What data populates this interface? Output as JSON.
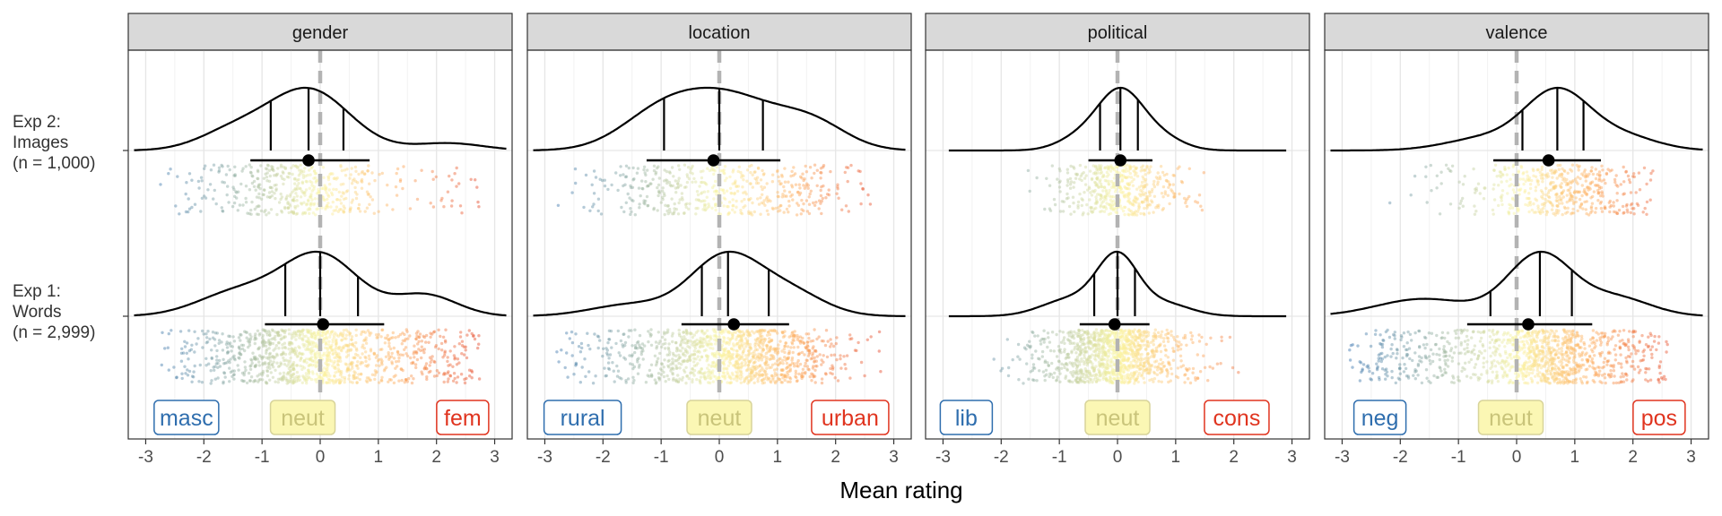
{
  "chart_data": {
    "type": "ridgeline",
    "xlabel": "Mean rating",
    "xlim": [
      -3.3,
      3.3
    ],
    "x_ticks": [
      -3,
      -2,
      -1,
      0,
      1,
      2,
      3
    ],
    "x_tick_labels": [
      "-3",
      "-2",
      "-1",
      "0",
      "1",
      "2",
      "3"
    ],
    "grid": true,
    "rows": [
      {
        "key": "exp2",
        "label_lines": [
          "Exp 2:",
          "Images",
          "(n = 1,000)"
        ]
      },
      {
        "key": "exp1",
        "label_lines": [
          "Exp 1:",
          "Words",
          "(n = 2,999)"
        ]
      }
    ],
    "panels": [
      {
        "name": "gender",
        "labels": [
          {
            "text": "masc",
            "x": -2.3,
            "color": "#2f6eae"
          },
          {
            "text": "neut",
            "x": -0.3,
            "color": "#c9c47a"
          },
          {
            "text": "fem",
            "x": 2.45,
            "color": "#e0341f"
          }
        ],
        "series": {
          "exp2": {
            "range": [
              -3.2,
              3.2
            ],
            "mean": -0.2,
            "ci": [
              -1.2,
              0.85
            ],
            "quantiles": [
              -0.85,
              -0.2,
              0.4
            ],
            "peaks": [
              [
                -0.2,
                1.0,
                0.7
              ],
              [
                -1.5,
                0.3,
                0.6
              ],
              [
                2.2,
                0.12,
                0.6
              ]
            ],
            "spread": [
              -2.8,
              2.8
            ]
          },
          "exp1": {
            "range": [
              -3.2,
              3.2
            ],
            "mean": 0.05,
            "ci": [
              -0.95,
              1.1
            ],
            "quantiles": [
              -0.6,
              0.0,
              0.65
            ],
            "peaks": [
              [
                0.0,
                1.0,
                0.65
              ],
              [
                -1.4,
                0.4,
                0.7
              ],
              [
                1.8,
                0.35,
                0.55
              ]
            ],
            "spread": [
              -2.8,
              2.8
            ]
          }
        }
      },
      {
        "name": "location",
        "labels": [
          {
            "text": "rural",
            "x": -2.35,
            "color": "#2f6eae"
          },
          {
            "text": "neut",
            "x": 0.0,
            "color": "#c9c47a"
          },
          {
            "text": "urban",
            "x": 2.25,
            "color": "#e0341f"
          }
        ],
        "series": {
          "exp2": {
            "range": [
              -3.2,
              3.2
            ],
            "mean": -0.1,
            "ci": [
              -1.25,
              1.05
            ],
            "quantiles": [
              -0.95,
              0.0,
              0.75
            ],
            "peaks": [
              [
                0.2,
                0.8,
                0.8
              ],
              [
                -1.0,
                0.55,
                0.7
              ],
              [
                1.6,
                0.4,
                0.6
              ]
            ],
            "spread": [
              -2.8,
              2.8
            ]
          },
          "exp1": {
            "range": [
              -3.2,
              3.2
            ],
            "mean": 0.25,
            "ci": [
              -0.65,
              1.2
            ],
            "quantiles": [
              -0.3,
              0.15,
              0.85
            ],
            "peaks": [
              [
                0.1,
                1.0,
                0.6
              ],
              [
                1.2,
                0.4,
                0.6
              ],
              [
                -1.5,
                0.2,
                0.7
              ]
            ],
            "spread": [
              -2.8,
              2.9
            ]
          }
        }
      },
      {
        "name": "political",
        "labels": [
          {
            "text": "lib",
            "x": -2.6,
            "color": "#2f6eae"
          },
          {
            "text": "neut",
            "x": 0.0,
            "color": "#c9c47a"
          },
          {
            "text": "cons",
            "x": 2.05,
            "color": "#e0341f"
          }
        ],
        "series": {
          "exp2": {
            "range": [
              -2.9,
              2.9
            ],
            "mean": 0.05,
            "ci": [
              -0.5,
              0.6
            ],
            "quantiles": [
              -0.3,
              0.05,
              0.35
            ],
            "peaks": [
              [
                0.05,
                1.0,
                0.38
              ],
              [
                -0.6,
                0.25,
                0.4
              ],
              [
                0.7,
                0.25,
                0.4
              ]
            ],
            "spread": [
              -1.8,
              1.5
            ]
          },
          "exp1": {
            "range": [
              -2.9,
              2.9
            ],
            "mean": -0.05,
            "ci": [
              -0.65,
              0.55
            ],
            "quantiles": [
              -0.4,
              0.0,
              0.3
            ],
            "peaks": [
              [
                0.0,
                1.0,
                0.35
              ],
              [
                -0.8,
                0.3,
                0.5
              ],
              [
                0.8,
                0.22,
                0.45
              ]
            ],
            "spread": [
              -2.2,
              2.6
            ]
          }
        }
      },
      {
        "name": "valence",
        "labels": [
          {
            "text": "neg",
            "x": -2.35,
            "color": "#2f6eae"
          },
          {
            "text": "neut",
            "x": -0.1,
            "color": "#c9c47a"
          },
          {
            "text": "pos",
            "x": 2.45,
            "color": "#e0341f"
          }
        ],
        "series": {
          "exp2": {
            "range": [
              -3.2,
              3.2
            ],
            "mean": 0.55,
            "ci": [
              -0.4,
              1.45
            ],
            "quantiles": [
              0.1,
              0.7,
              1.15
            ],
            "peaks": [
              [
                0.7,
                1.0,
                0.55
              ],
              [
                -0.5,
                0.22,
                0.7
              ],
              [
                1.8,
                0.25,
                0.6
              ]
            ],
            "spread": [
              -2.8,
              2.4
            ]
          },
          "exp1": {
            "range": [
              -3.2,
              3.2
            ],
            "mean": 0.2,
            "ci": [
              -0.85,
              1.3
            ],
            "quantiles": [
              -0.45,
              0.4,
              0.95
            ],
            "peaks": [
              [
                0.4,
                1.0,
                0.55
              ],
              [
                -1.6,
                0.28,
                0.8
              ],
              [
                1.7,
                0.3,
                0.6
              ]
            ],
            "spread": [
              -2.9,
              2.6
            ]
          }
        }
      }
    ]
  }
}
